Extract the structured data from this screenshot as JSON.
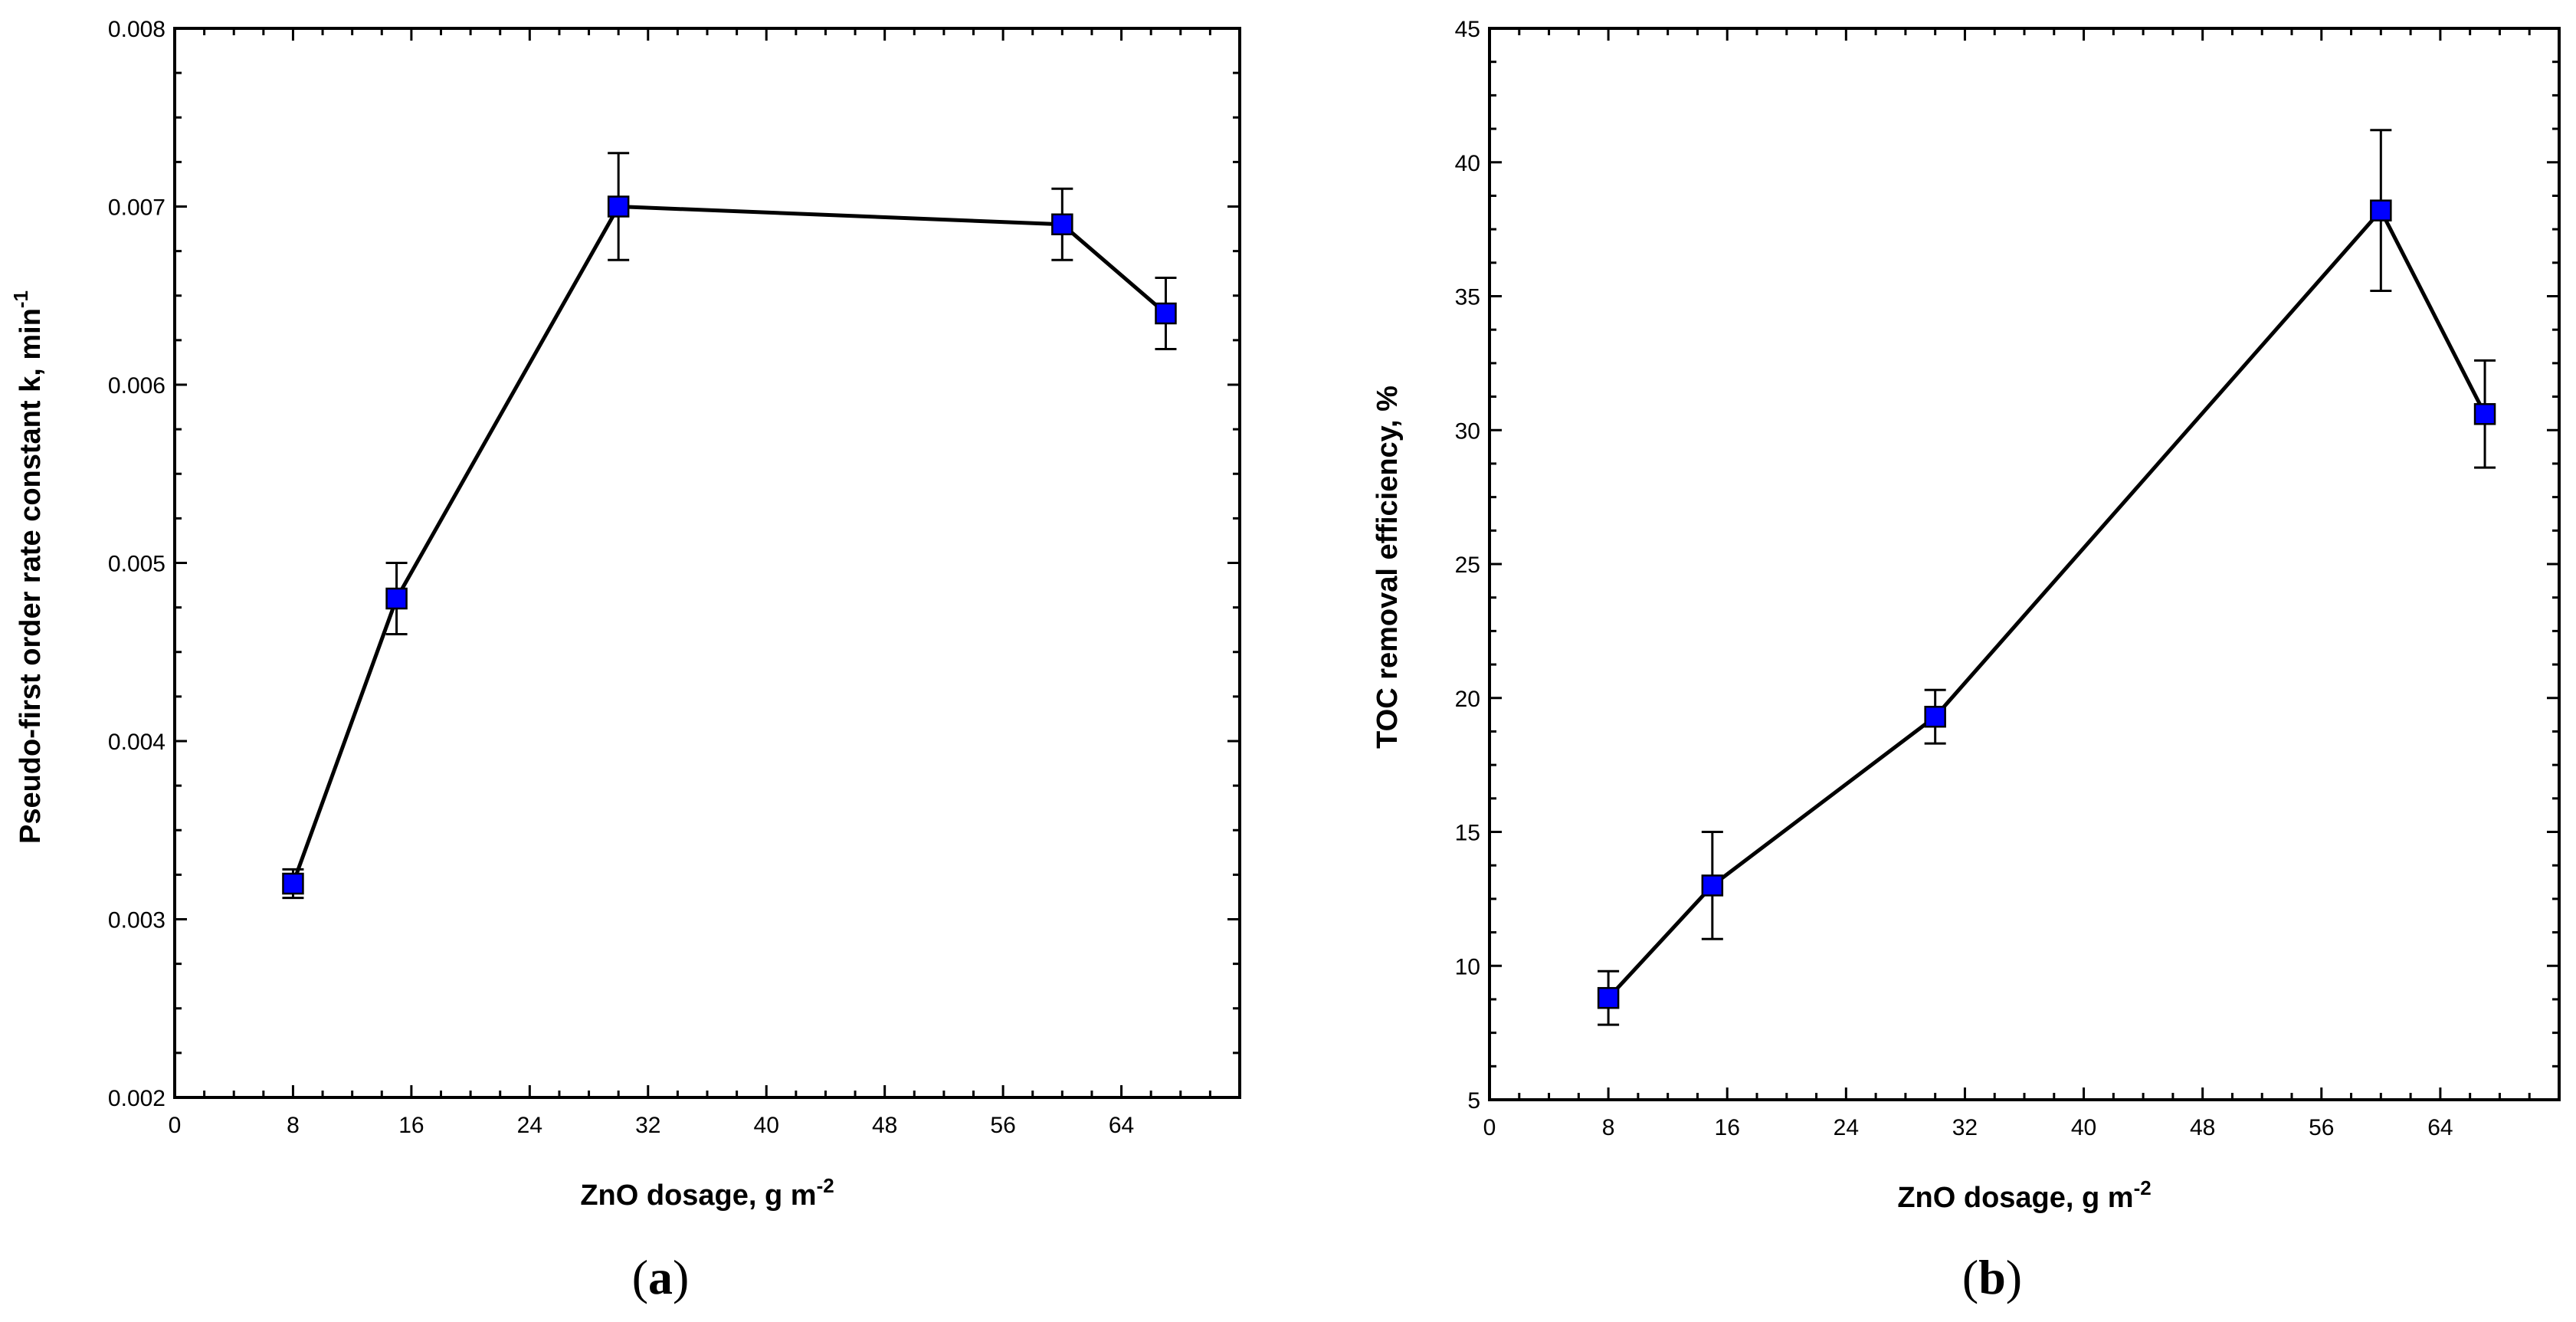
{
  "figure": {
    "panel_labels": [
      "(a)",
      "(b)"
    ]
  },
  "chart_data": [
    {
      "type": "line",
      "panel": "a",
      "marker": "square",
      "marker_color": "#0000ff",
      "line_color": "#000000",
      "xlabel": "ZnO dosage, g m",
      "xlabel_sup": "-2",
      "ylabel": "Pseudo-first order rate constant k, min",
      "ylabel_sup": "-1",
      "xlim": [
        0,
        72
      ],
      "ylim": [
        0.002,
        0.008
      ],
      "xticks": [
        0,
        8,
        16,
        24,
        32,
        40,
        48,
        56,
        64
      ],
      "xtick_labels": [
        "0",
        "8",
        "16",
        "24",
        "32",
        "40",
        "48",
        "56",
        "64"
      ],
      "yticks": [
        0.002,
        0.003,
        0.004,
        0.005,
        0.006,
        0.007,
        0.008
      ],
      "ytick_labels": [
        "0.002",
        "0.003",
        "0.004",
        "0.005",
        "0.006",
        "0.007",
        "0.008"
      ],
      "x": [
        8,
        15,
        30,
        60,
        67
      ],
      "y": [
        0.0032,
        0.0048,
        0.007,
        0.0069,
        0.0064
      ],
      "err_low": [
        0.00312,
        0.0046,
        0.0067,
        0.0067,
        0.0062
      ],
      "err_high": [
        0.00328,
        0.005,
        0.0073,
        0.0071,
        0.0066
      ]
    },
    {
      "type": "line",
      "panel": "b",
      "marker": "square",
      "marker_color": "#0000ff",
      "line_color": "#000000",
      "xlabel": "ZnO dosage, g m",
      "xlabel_sup": "-2",
      "ylabel": "TOC removal efficiency, %",
      "ylabel_sup": "",
      "xlim": [
        0,
        72
      ],
      "ylim": [
        5,
        45
      ],
      "xticks": [
        0,
        8,
        16,
        24,
        32,
        40,
        48,
        56,
        64
      ],
      "xtick_labels": [
        "0",
        "8",
        "16",
        "24",
        "32",
        "40",
        "48",
        "56",
        "64"
      ],
      "yticks": [
        5,
        10,
        15,
        20,
        25,
        30,
        35,
        40,
        45
      ],
      "ytick_labels": [
        "5",
        "10",
        "15",
        "20",
        "25",
        "30",
        "35",
        "40",
        "45"
      ],
      "x": [
        8,
        15,
        30,
        60,
        67
      ],
      "y": [
        8.8,
        13.0,
        19.3,
        38.2,
        30.6
      ],
      "err_low": [
        7.8,
        11.0,
        18.3,
        35.2,
        28.6
      ],
      "err_high": [
        9.8,
        15.0,
        20.3,
        41.2,
        32.6
      ]
    }
  ]
}
